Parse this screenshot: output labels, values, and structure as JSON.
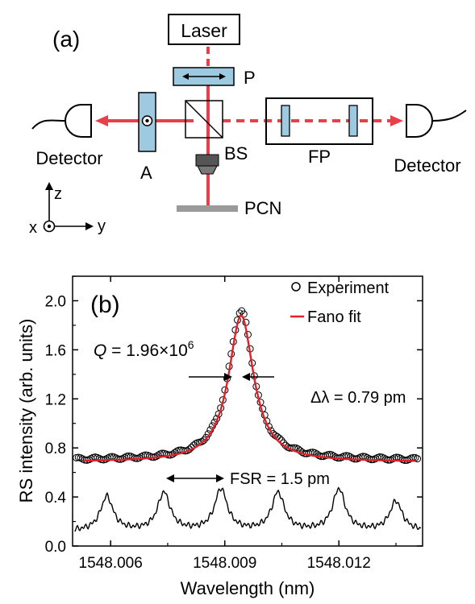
{
  "panel_a": {
    "label": "(a)",
    "components": {
      "laser": "Laser",
      "polarizer": "P",
      "beam_splitter": "BS",
      "analyzer": "A",
      "fabry_perot": "FP",
      "detector_left": "Detector",
      "detector_right": "Detector",
      "sample": "PCN"
    },
    "axes": {
      "z": "z",
      "x": "x",
      "y": "y"
    },
    "colors": {
      "beam": "#e8404a",
      "optic": "#9ecae1",
      "sample": "#9a9a9a"
    }
  },
  "panel_b": {
    "label": "(b)",
    "annot_q_prefix": "Q",
    "annot_q_rest": " = 1.96×10",
    "annot_q_exp": "6",
    "annot_dl": "Δλ = 0.79 pm",
    "annot_fsr": "FSR = 1.5 pm"
  },
  "chart_data": {
    "type": "line",
    "title": "",
    "xlabel": "Wavelength (nm)",
    "ylabel": "RS intensity (arb. units)",
    "xlim": [
      1548.005,
      1548.0142
    ],
    "ylim": [
      0.0,
      2.2
    ],
    "xticks": [
      1548.006,
      1548.009,
      1548.012
    ],
    "xtick_labels": [
      "1548.006",
      "1548.009",
      "1548.012"
    ],
    "yticks": [
      0.0,
      0.4,
      0.8,
      1.2,
      1.6,
      2.0
    ],
    "ytick_labels": [
      "0.0",
      "0.4",
      "0.8",
      "1.2",
      "1.6",
      "2.0"
    ],
    "legend_position": "top-right",
    "series": [
      {
        "name": "Experiment",
        "style": "open-circles",
        "color": "#000000",
        "model": {
          "form": "lorentzian",
          "baseline": 0.7,
          "peak": 1.92,
          "center": 1548.00943,
          "hwhm": 0.0004
        }
      },
      {
        "name": "Fano fit",
        "style": "line",
        "color": "#e0202a",
        "model": {
          "form": "lorentzian",
          "baseline": 0.685,
          "peak": 1.88,
          "center": 1548.00943,
          "hwhm": 0.0004
        }
      },
      {
        "name": "",
        "style": "line",
        "color": "#000000",
        "model": {
          "form": "comb",
          "baseline": 0.12,
          "center_wavelengths": [
            1548.0059,
            1548.0074,
            1548.0089,
            1548.0104,
            1548.012,
            1548.0135
          ],
          "peak_values": [
            0.4,
            0.43,
            0.46,
            0.43,
            0.46,
            0.36
          ],
          "hwhm": 0.0002
        }
      }
    ]
  }
}
